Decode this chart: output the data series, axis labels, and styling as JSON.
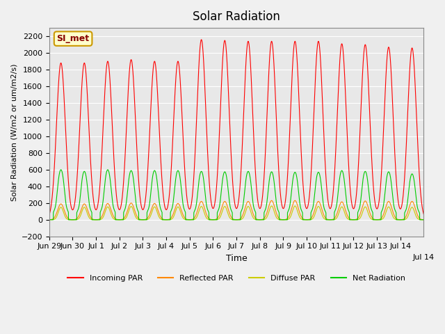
{
  "title": "Solar Radiation",
  "ylabel": "Solar Radiation (W/m2 or um/m2/s)",
  "xlabel": "Time",
  "ylim": [
    -200,
    2300
  ],
  "yticks": [
    -200,
    0,
    200,
    400,
    600,
    800,
    1000,
    1200,
    1400,
    1600,
    1800,
    2000,
    2200
  ],
  "annotation_text": "SI_met",
  "annotation_bg": "#ffffcc",
  "annotation_border": "#cc9900",
  "bg_color": "#e8e8e8",
  "grid_color": "#ffffff",
  "colors": {
    "incoming": "#ff0000",
    "reflected": "#ff8800",
    "diffuse": "#cccc00",
    "net": "#00cc00"
  },
  "legend": [
    "Incoming PAR",
    "Reflected PAR",
    "Diffuse PAR",
    "Net Radiation"
  ],
  "n_days": 16,
  "tick_positions": [
    0,
    1,
    2,
    3,
    4,
    5,
    6,
    7,
    8,
    9,
    10,
    11,
    12,
    13,
    14,
    15
  ],
  "tick_labels": [
    "Jun 29",
    "Jun 30",
    "Jul 1",
    "Jul 2",
    "Jul 3",
    "Jul 4",
    "Jul 5",
    "Jul 6",
    "Jul 7",
    "Jul 8",
    "Jul 9",
    "Jul 10",
    "Jul 11",
    "Jul 12",
    "Jul 13",
    "Jul 14"
  ],
  "incoming_peaks": [
    1880,
    1880,
    1900,
    1920,
    1900,
    1900,
    2160,
    2150,
    2140,
    2140,
    2140,
    2140,
    2110,
    2100,
    2070,
    2060
  ],
  "reflected_peaks": [
    190,
    190,
    195,
    200,
    195,
    195,
    220,
    220,
    220,
    230,
    230,
    220,
    215,
    225,
    220,
    220
  ],
  "diffuse_peaks": [
    150,
    150,
    155,
    160,
    155,
    155,
    160,
    160,
    160,
    165,
    165,
    160,
    155,
    155,
    155,
    150
  ],
  "net_peaks": [
    600,
    580,
    600,
    590,
    590,
    590,
    580,
    575,
    580,
    575,
    570,
    570,
    590,
    580,
    575,
    550
  ],
  "net_negative": -80,
  "xlim_end": 16
}
